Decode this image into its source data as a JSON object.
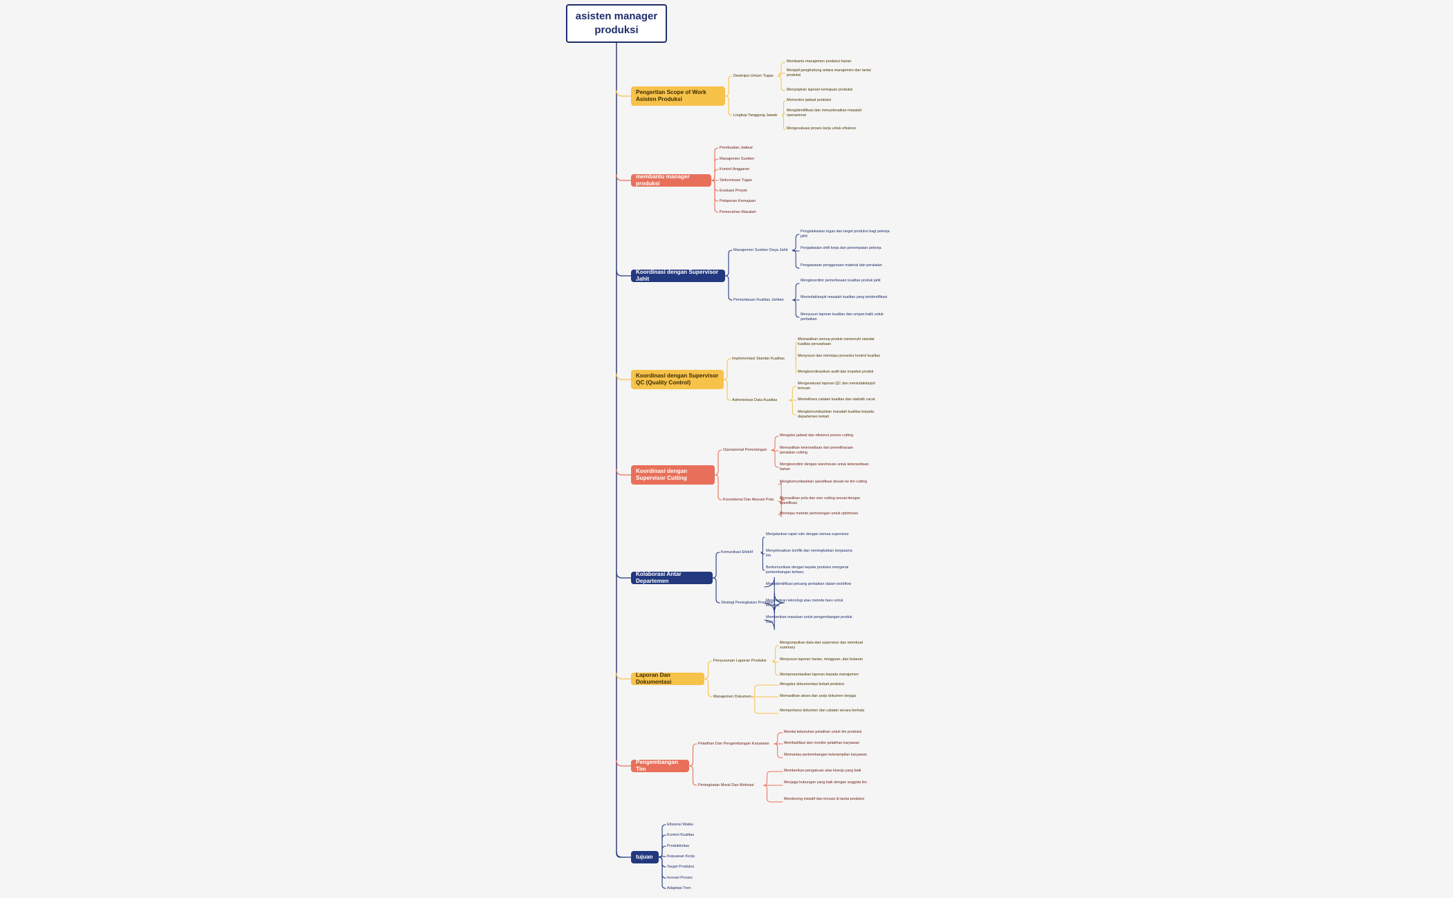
{
  "palette": {
    "yellow": "#f7c24a",
    "coral": "#e8705a",
    "navy": "#22387f",
    "root_border": "#1f2d6b",
    "yellow_text": "#4a3400",
    "coral_text": "#6b1d12",
    "navy_text": "#1f2d6b"
  },
  "mindmap": {
    "root": "asisten manager produksi",
    "branches": [
      {
        "label": "Pengertian Scope of Work Asisten Produksi",
        "color": "yellow",
        "children": [
          {
            "label": "Deskripsi Umum Tugas",
            "leaves": [
              "Membantu manajemen produksi harian",
              "Menjadi penghubung antara manajemen dan lantai produksi",
              "Menyiapkan laporan kemajuan produksi"
            ]
          },
          {
            "label": "Lingkup Tanggung Jawab",
            "leaves": [
              "Memonitor jadwal produksi",
              "Mengidentifikasi dan menyelesaikan masalah operasional",
              "Mengevaluasi proses kerja untuk efisiensi"
            ]
          }
        ]
      },
      {
        "label": "membantu manager produksi",
        "color": "coral",
        "items": [
          "Pembuatan Jadwal",
          "Manajemen Sumber",
          "Kontrol Anggaran",
          "Sinkronisasi Tugas",
          "Evaluasi Proyek",
          "Pelaporan Kemajuan",
          "Pemecahan Masalah"
        ]
      },
      {
        "label": "Koordinasi dengan Supervisor Jahit",
        "color": "navy",
        "children": [
          {
            "label": "Manajemen Sumber Daya Jahit",
            "leaves": [
              "Pengalokasian tugas dan target produksi bagi pekerja jahit",
              "Penjadwalan shift kerja dan penempatan pekerja",
              "Pengawasan penggunaan material dan peralatan"
            ]
          },
          {
            "label": "Pemantauan Kualitas Jahitan",
            "leaves": [
              "Mengkoordinir pemeriksaan kualitas produk jahit",
              "Menindaklanjuti masalah kualitas yang teridentifikasi",
              "Menyusun laporan kualitas dan umpan balik untuk perbaikan"
            ]
          }
        ]
      },
      {
        "label": "Koordinasi dengan Supervisor QC (Quality Control)",
        "color": "yellow",
        "children": [
          {
            "label": "Implementasi Standar Kualitas",
            "leaves": [
              "Memastikan semua produk memenuhi standar kualitas perusahaan",
              "Menyusun dan meninjau prosedur kontrol kualitas",
              "Mengkoordinasikan audit dan inspeksi produk"
            ]
          },
          {
            "label": "Administrasi Data Kualitas",
            "leaves": [
              "Mengevaluasi laporan QC dan menindaklanjuti temuan",
              "Memelihara catatan kualitas dan statistik cacat",
              "Mengkomunikasikan masalah kualitas kepada departemen terkait"
            ]
          }
        ]
      },
      {
        "label": "Koordinasi dengan Supervisor Cutting",
        "color": "coral",
        "children": [
          {
            "label": "Operasional Pemotongan",
            "leaves": [
              "Mengatur jadwal dan efisiensi proses cutting",
              "Memastikan ketersediaan dan pemeliharaan peralatan cutting",
              "Mengkoordinir dengan warehouse untuk ketersediaan bahan"
            ]
          },
          {
            "label": "Konsistensi Dan Akurasi Pola",
            "leaves": [
              "Mengkomunikasikan spesifikasi desain ke tim cutting",
              "Memastikan pola dan size cutting sesuai dengan spesifikasi",
              "Meninjau metode pemotongan untuk optimisasi"
            ]
          }
        ]
      },
      {
        "label": "Kolaborasi Antar Departemen",
        "color": "navy",
        "children": [
          {
            "label": "Komunikasi Efektif",
            "leaves": [
              "Menjalankan rapat rutin dengan semua supervisor",
              "Menyelesaikan konflik dan meningkatkan kerjasama tim",
              "Berkomunikasi dengan kepala produksi mengenai perkembangan terbaru"
            ]
          },
          {
            "label": "Strategi Peningkatan Produksi",
            "leaves": [
              "Mengidentifikasi peluang perbaikan dalam workflow",
              "Menerapkan teknologi atau metode baru untuk efisiensi",
              "Memberikan masukan untuk pengembangan produk baru"
            ]
          }
        ]
      },
      {
        "label": "Laporan Dan Dokumentasi",
        "color": "yellow",
        "children": [
          {
            "label": "Penyusunan Laporan Produksi",
            "leaves": [
              "Mengumpulkan data dari supervisor dan membuat summary",
              "Menyusun laporan harian, mingguan, dan bulanan",
              "Mempresentasikan laporan kepada manajemen"
            ]
          },
          {
            "label": "Manajemen Dokumen",
            "leaves": [
              "Mengatur dokumentasi terkait produksi",
              "Memastikan akses dan arsip dokumen terjaga",
              "Memperbarui dokumen dan catatan secara berkala"
            ]
          }
        ]
      },
      {
        "label": "Pengembangan Tim",
        "color": "coral",
        "children": [
          {
            "label": "Pelatihan Dan Pengembangan Karyawan",
            "leaves": [
              "Menilai kebutuhan pelatihan untuk tim produksi",
              "Memfasilitasi dan monitor pelatihan karyawan",
              "Memantau perkembangan keterampilan karyawan"
            ]
          },
          {
            "label": "Peningkatan Moral Dan Motivasi",
            "leaves": [
              "Memberikan pengakuan atas kinerja yang baik",
              "Menjaga hubungan yang baik dengan anggota tim",
              "Mendorong inisiatif dan inovasi di lantai produksi"
            ]
          }
        ]
      },
      {
        "label": "tujuan",
        "color": "navy",
        "items": [
          "Efisiensi Waktu",
          "Kontrol Kualitas",
          "Produktivitas",
          "Kepuasan Kerja",
          "Target Produksi",
          "Inovasi Proses",
          "Adaptasi Tren"
        ]
      }
    ]
  }
}
